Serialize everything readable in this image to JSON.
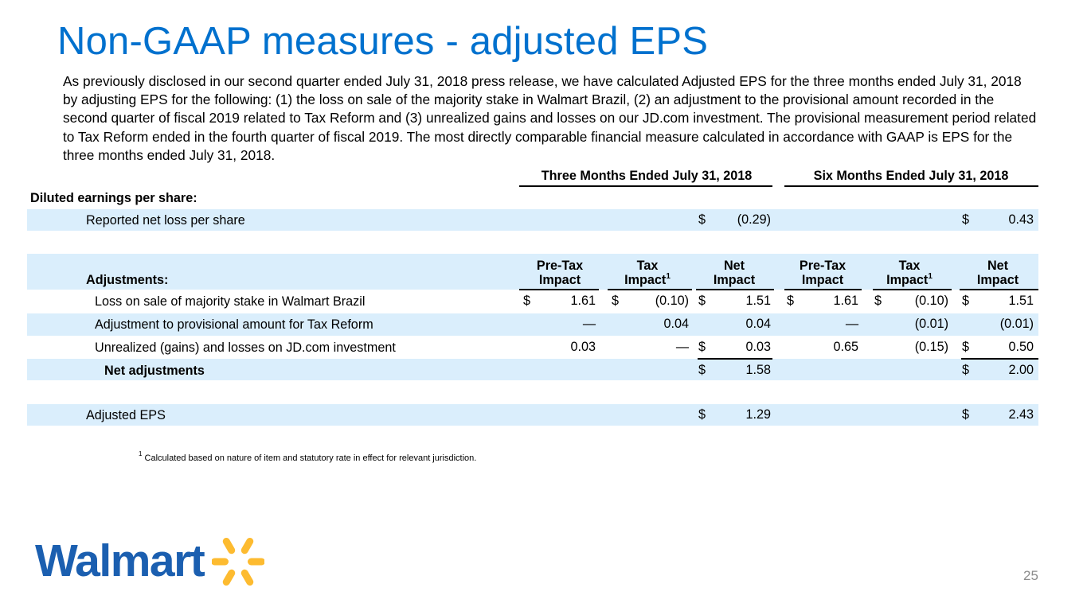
{
  "title": "Non-GAAP measures - adjusted EPS",
  "intro": "As previously disclosed in our second quarter ended July 31, 2018 press release, we have calculated Adjusted EPS for the three months ended July 31, 2018 by adjusting EPS for the following: (1) the loss on sale of the majority stake in Walmart Brazil, (2) an adjustment to the provisional amount recorded in the second quarter of fiscal 2019 related to Tax Reform and (3) unrealized gains and losses on our JD.com investment.  The provisional measurement period related to Tax Reform ended in the fourth quarter of fiscal 2019.  The most directly comparable financial measure calculated in accordance with GAAP is EPS for the three months ended July 31, 2018.",
  "period_headers": [
    "Three Months Ended July 31, 2018",
    "Six Months Ended July 31, 2018"
  ],
  "diluted_label": "Diluted earnings per share:",
  "reported": {
    "label": "Reported net loss per share",
    "three_dollar": "$",
    "three": "(0.29)",
    "six_dollar": "$",
    "six": "0.43"
  },
  "adjustments_label": "Adjustments:",
  "column_headers": [
    {
      "top": "Pre-Tax",
      "bottom": "Impact",
      "sup": ""
    },
    {
      "top": "Tax",
      "bottom": "Impact",
      "sup": "1"
    },
    {
      "top": "Net",
      "bottom": "Impact",
      "sup": ""
    },
    {
      "top": "Pre-Tax",
      "bottom": "Impact",
      "sup": ""
    },
    {
      "top": "Tax",
      "bottom": "Impact",
      "sup": "1"
    },
    {
      "top": "Net",
      "bottom": "Impact",
      "sup": ""
    }
  ],
  "rows": [
    {
      "label": "Loss on sale of majority stake in Walmart Brazil",
      "cells": [
        {
          "d": "$",
          "v": "1.61"
        },
        {
          "d": "$",
          "v": "(0.10)"
        },
        {
          "d": "$",
          "v": "1.51"
        },
        {
          "d": "$",
          "v": "1.61"
        },
        {
          "d": "$",
          "v": "(0.10)"
        },
        {
          "d": "$",
          "v": "1.51"
        }
      ]
    },
    {
      "label": "Adjustment to provisional amount for Tax Reform",
      "cells": [
        {
          "d": "",
          "v": "—"
        },
        {
          "d": "",
          "v": "0.04"
        },
        {
          "d": "",
          "v": "0.04"
        },
        {
          "d": "",
          "v": "—"
        },
        {
          "d": "",
          "v": "(0.01)"
        },
        {
          "d": "",
          "v": "(0.01)"
        }
      ]
    },
    {
      "label": "Unrealized (gains) and losses on JD.com investment",
      "cells": [
        {
          "d": "",
          "v": "0.03"
        },
        {
          "d": "",
          "v": "—"
        },
        {
          "d": "$",
          "v": "0.03"
        },
        {
          "d": "",
          "v": "0.65"
        },
        {
          "d": "",
          "v": "(0.15)"
        },
        {
          "d": "$",
          "v": "0.50"
        }
      ]
    }
  ],
  "net_adjustments": {
    "label": "Net adjustments",
    "three_dollar": "$",
    "three": "1.58",
    "six_dollar": "$",
    "six": "2.00"
  },
  "adjusted": {
    "label": "Adjusted EPS",
    "three_dollar": "$",
    "three": "1.29",
    "six_dollar": "$",
    "six": "2.43"
  },
  "footnote": {
    "marker": "1",
    "text": "Calculated based on nature of item and statutory rate in effect for relevant jurisdiction."
  },
  "logo": {
    "text": "Walmart",
    "color": "#1b5fb0",
    "spark_color": "#fdbb30",
    "icon": "spark-icon"
  },
  "page_number": "25",
  "colors": {
    "title": "#0071ce",
    "band": "#daeefc"
  }
}
